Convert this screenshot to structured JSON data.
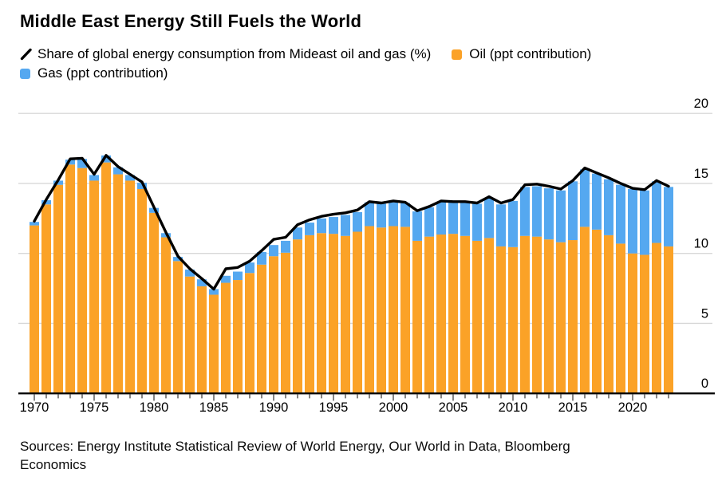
{
  "title": "Middle East Energy Still Fuels the World",
  "legend": [
    {
      "id": "share-line",
      "label": "Share of global energy consumption from Mideast oil and gas (%)",
      "marker": "line",
      "color": "#000000"
    },
    {
      "id": "oil",
      "label": "Oil (ppt contribution)",
      "marker": "square",
      "color": "#fba227"
    },
    {
      "id": "gas",
      "label": "Gas (ppt contribution)",
      "marker": "square",
      "color": "#55a8f0"
    }
  ],
  "sources_lines": [
    "Sources: Energy Institute Statistical Review of World Energy, Our World in Data, Bloomberg",
    "Economics"
  ],
  "colors": {
    "oil": "#fba227",
    "gas": "#55a8f0",
    "line": "#000000",
    "gridline": "#d8d8d8",
    "axis": "#000000",
    "tick": "#333333",
    "label": "#000000"
  },
  "chart_data": {
    "type": "bar",
    "subtype": "stacked-bars-with-line-overlay",
    "title": "Middle East Energy Still Fuels the World",
    "xlabel": "",
    "ylabel": "",
    "ylim": [
      0,
      20
    ],
    "yticks": [
      0,
      5,
      10,
      15,
      20
    ],
    "ytick_side": "right",
    "grid": "horizontal",
    "legend_position": "top",
    "xticks": [
      1970,
      1975,
      1980,
      1985,
      1990,
      1995,
      2000,
      2005,
      2010,
      2015,
      2020
    ],
    "x": [
      1970,
      1971,
      1972,
      1973,
      1974,
      1975,
      1976,
      1977,
      1978,
      1979,
      1980,
      1981,
      1982,
      1983,
      1984,
      1985,
      1986,
      1987,
      1988,
      1989,
      1990,
      1991,
      1992,
      1993,
      1994,
      1995,
      1996,
      1997,
      1998,
      1999,
      2000,
      2001,
      2002,
      2003,
      2004,
      2005,
      2006,
      2007,
      2008,
      2009,
      2010,
      2011,
      2012,
      2013,
      2014,
      2015,
      2016,
      2017,
      2018,
      2019,
      2020,
      2021,
      2022,
      2023
    ],
    "series": [
      {
        "name": "Oil (ppt contribution)",
        "type": "bar",
        "stack": "mideast",
        "color": "#fba227",
        "values": [
          12.0,
          13.5,
          14.9,
          16.35,
          16.1,
          15.2,
          16.5,
          15.65,
          15.2,
          14.6,
          12.9,
          11.15,
          9.45,
          8.35,
          7.65,
          7.05,
          7.9,
          8.1,
          8.6,
          9.2,
          9.8,
          10.05,
          11.0,
          11.3,
          11.45,
          11.4,
          11.25,
          11.55,
          11.95,
          11.85,
          11.95,
          11.9,
          10.9,
          11.2,
          11.35,
          11.4,
          11.25,
          10.9,
          11.1,
          10.5,
          10.45,
          11.25,
          11.2,
          11.0,
          10.8,
          10.95,
          11.9,
          11.7,
          11.3,
          10.7,
          10.0,
          9.9,
          10.75,
          10.5
        ]
      },
      {
        "name": "Gas (ppt contribution)",
        "type": "bar",
        "stack": "mideast",
        "color": "#55a8f0",
        "values": [
          0.25,
          0.3,
          0.3,
          0.35,
          0.65,
          0.4,
          0.5,
          0.5,
          0.4,
          0.45,
          0.35,
          0.3,
          0.3,
          0.5,
          0.5,
          0.4,
          0.5,
          0.6,
          0.75,
          0.9,
          0.8,
          0.85,
          0.85,
          0.9,
          1.05,
          1.2,
          1.5,
          1.4,
          1.7,
          1.7,
          1.7,
          1.7,
          2.1,
          2.1,
          2.35,
          2.25,
          2.35,
          2.65,
          2.85,
          3.0,
          3.3,
          3.5,
          3.6,
          3.65,
          3.7,
          4.2,
          4.1,
          4.0,
          4.0,
          4.2,
          4.6,
          4.6,
          4.4,
          4.25
        ]
      },
      {
        "name": "Share of global energy consumption from Mideast oil and gas (%)",
        "type": "line",
        "color": "#000000",
        "values": [
          12.3,
          13.85,
          15.25,
          16.75,
          16.8,
          15.65,
          17.0,
          16.2,
          15.65,
          15.1,
          13.3,
          11.5,
          9.8,
          8.9,
          8.2,
          7.45,
          8.9,
          9.0,
          9.45,
          10.2,
          11.0,
          11.15,
          12.05,
          12.4,
          12.65,
          12.8,
          12.9,
          13.1,
          13.7,
          13.6,
          13.75,
          13.65,
          13.05,
          13.35,
          13.75,
          13.7,
          13.7,
          13.6,
          14.05,
          13.6,
          13.85,
          14.9,
          14.95,
          14.8,
          14.6,
          15.2,
          16.1,
          15.75,
          15.4,
          15.0,
          14.65,
          14.55,
          15.2,
          14.8
        ]
      }
    ]
  }
}
